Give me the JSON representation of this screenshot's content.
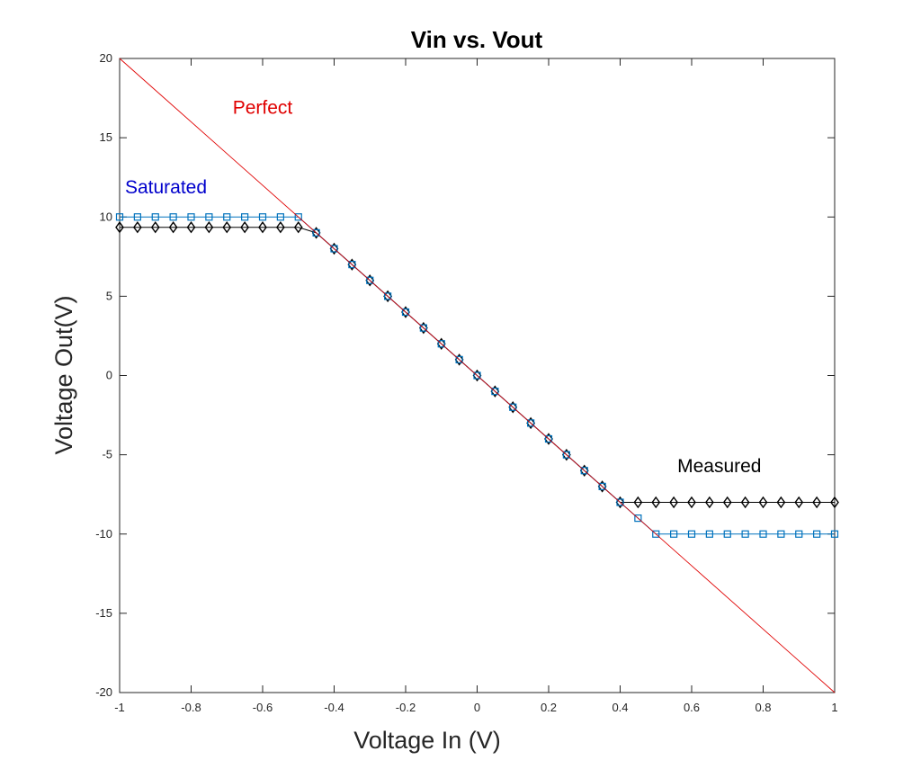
{
  "chart_data": {
    "type": "line",
    "title": "Vin vs. Vout",
    "xlabel": "Voltage In (V)",
    "ylabel": "Voltage Out(V)",
    "xlim": [
      -1,
      1
    ],
    "ylim": [
      -20,
      20
    ],
    "xticks": [
      -1,
      -0.8,
      -0.6,
      -0.4,
      -0.2,
      0,
      0.2,
      0.4,
      0.6,
      0.8,
      1
    ],
    "xtick_labels": [
      "-1",
      "-0.8",
      "-0.6",
      "-0.4",
      "-0.2",
      "0",
      "0.2",
      "0.4",
      "0.6",
      "0.8",
      "1"
    ],
    "yticks": [
      -20,
      -15,
      -10,
      -5,
      0,
      5,
      10,
      15,
      20
    ],
    "ytick_labels": [
      "-20",
      "-15",
      "-10",
      "-5",
      "0",
      "5",
      "10",
      "15",
      "20"
    ],
    "grid": false,
    "x": [
      -1,
      -0.95,
      -0.9,
      -0.85,
      -0.8,
      -0.75,
      -0.7,
      -0.65,
      -0.6,
      -0.55,
      -0.5,
      -0.45,
      -0.4,
      -0.35,
      -0.3,
      -0.25,
      -0.2,
      -0.15,
      -0.1,
      -0.05,
      0,
      0.05,
      0.1,
      0.15,
      0.2,
      0.25,
      0.3,
      0.35,
      0.4,
      0.45,
      0.5,
      0.55,
      0.6,
      0.65,
      0.7,
      0.75,
      0.8,
      0.85,
      0.9,
      0.95,
      1
    ],
    "series": [
      {
        "name": "Perfect",
        "color": "#e00000",
        "marker": "none",
        "x": [
          -1,
          1
        ],
        "values": [
          20,
          -20
        ]
      },
      {
        "name": "Saturated",
        "color": "#0072bd",
        "marker": "square",
        "values": [
          10,
          10,
          10,
          10,
          10,
          10,
          10,
          10,
          10,
          10,
          10,
          9,
          8,
          7,
          6,
          5,
          4,
          3,
          2,
          1,
          0,
          -1,
          -2,
          -3,
          -4,
          -5,
          -6,
          -7,
          -8,
          -9,
          -10,
          -10,
          -10,
          -10,
          -10,
          -10,
          -10,
          -10,
          -10,
          -10,
          -10
        ]
      },
      {
        "name": "Measured",
        "color": "#000000",
        "marker": "diamond",
        "values": [
          9.35,
          9.35,
          9.35,
          9.35,
          9.35,
          9.35,
          9.35,
          9.35,
          9.35,
          9.35,
          9.35,
          9,
          8,
          7,
          6,
          5,
          4,
          3,
          2,
          1,
          0,
          -1,
          -2,
          -3,
          -4,
          -5,
          -6,
          -7,
          -8,
          -8,
          -8,
          -8,
          -8,
          -8,
          -8,
          -8,
          -8,
          -8,
          -8,
          -8,
          -8
        ]
      }
    ],
    "annotations": [
      {
        "text": "Perfect",
        "color": "#e00000",
        "x": -0.6,
        "y": 16.5,
        "anchor": "middle"
      },
      {
        "text": "Saturated",
        "color": "#0000cc",
        "x": -0.985,
        "y": 11.5,
        "anchor": "start"
      },
      {
        "text": "Measured",
        "color": "#000000",
        "x": 0.56,
        "y": -6.1,
        "anchor": "start"
      }
    ]
  }
}
